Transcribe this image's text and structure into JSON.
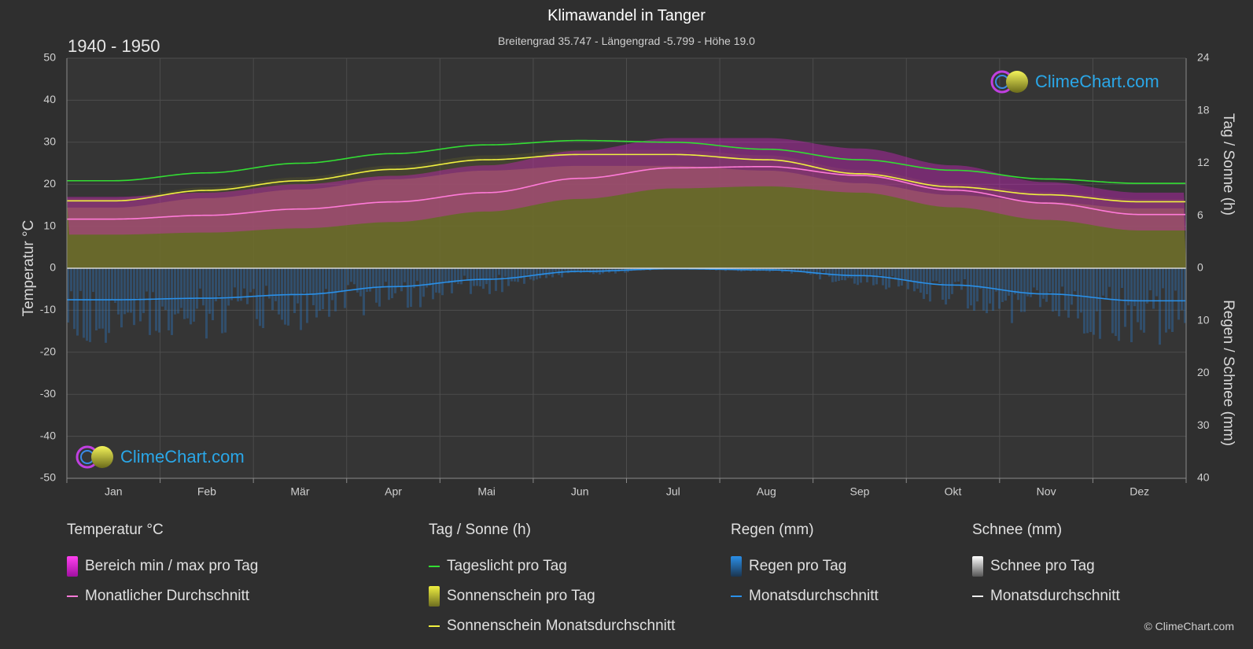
{
  "header": {
    "title": "Klimawandel in Tanger",
    "subtitle": "Breitengrad 35.747 - Längengrad -5.799 - Höhe 19.0",
    "period": "1940 - 1950"
  },
  "axes": {
    "left_title": "Temperatur °C",
    "right_top_title": "Tag / Sonne (h)",
    "right_bottom_title": "Regen / Schnee (mm)"
  },
  "logo": {
    "text": "ClimeChart.com"
  },
  "copyright": "© ClimeChart.com",
  "legend": {
    "temperature": {
      "title": "Temperatur °C",
      "range_label": "Bereich min / max pro Tag",
      "avg_label": "Monatlicher Durchschnitt"
    },
    "sun": {
      "title": "Tag / Sonne (h)",
      "daylight_label": "Tageslicht pro Tag",
      "sunshine_label": "Sonnenschein pro Tag",
      "sunshine_avg_label": "Sonnenschein Monatsdurchschnitt"
    },
    "rain": {
      "title": "Regen (mm)",
      "per_day_label": "Regen pro Tag",
      "avg_label": "Monatsdurchschnitt"
    },
    "snow": {
      "title": "Schnee (mm)",
      "per_day_label": "Schnee pro Tag",
      "avg_label": "Monatsdurchschnitt"
    }
  },
  "colors": {
    "background": "#2f2f2f",
    "temp_range": "#e020d0",
    "temp_avg": "#ff7ad8",
    "daylight": "#33dd33",
    "sunshine_fill": "#8f8f2a",
    "sunshine_avg": "#f0f040",
    "rain": "#2a7fd0",
    "rain_avg": "#2a90e8",
    "snow": "#dddddd",
    "logo_text": "#2aa7e8"
  },
  "chart_data": {
    "type": "area",
    "x_categories": [
      "Jan",
      "Feb",
      "Mär",
      "Apr",
      "Mai",
      "Jun",
      "Jul",
      "Aug",
      "Sep",
      "Okt",
      "Nov",
      "Dez"
    ],
    "left_axis": {
      "label": "Temperatur °C",
      "ticks": [
        50,
        40,
        30,
        20,
        10,
        0,
        -10,
        -20,
        -30,
        -40,
        -50
      ],
      "range": [
        -50,
        50
      ]
    },
    "right_axis_top": {
      "label": "Tag / Sonne (h)",
      "ticks": [
        24,
        18,
        12,
        6,
        0
      ],
      "range": [
        0,
        24
      ]
    },
    "right_axis_bottom": {
      "label": "Regen / Schnee (mm)",
      "ticks": [
        0,
        10,
        20,
        30,
        40
      ],
      "range": [
        0,
        40
      ]
    },
    "grid": true,
    "series": [
      {
        "name": "Tageslicht pro Tag",
        "unit": "h",
        "values": [
          10.0,
          10.9,
          12.0,
          13.1,
          14.1,
          14.6,
          14.4,
          13.6,
          12.4,
          11.2,
          10.2,
          9.7
        ]
      },
      {
        "name": "Sonnenschein Monatsdurchschnitt",
        "unit": "h",
        "values": [
          7.7,
          8.9,
          10.0,
          11.3,
          12.4,
          13.0,
          13.0,
          12.4,
          10.8,
          9.3,
          8.4,
          7.6
        ]
      },
      {
        "name": "Monatlicher Durchschnitt",
        "unit": "°C",
        "values": [
          11.7,
          12.6,
          14.1,
          15.8,
          18.0,
          21.4,
          23.9,
          24.2,
          22.1,
          18.6,
          15.5,
          12.8
        ]
      },
      {
        "name": "Bereich min / max pro Tag (max)",
        "unit": "°C",
        "values": [
          17.0,
          18.0,
          20.0,
          22.0,
          24.5,
          28.0,
          31.0,
          31.0,
          28.5,
          24.5,
          20.5,
          18.0
        ]
      },
      {
        "name": "Bereich min / max pro Tag (min)",
        "unit": "°C",
        "values": [
          8.0,
          8.5,
          9.5,
          11.0,
          13.5,
          16.5,
          19.0,
          19.5,
          18.0,
          14.5,
          11.5,
          9.0
        ]
      },
      {
        "name": "Regen Monatsdurchschnitt",
        "unit": "mm",
        "values": [
          6.0,
          5.7,
          5.0,
          3.5,
          2.1,
          0.6,
          0.1,
          0.3,
          1.4,
          3.2,
          4.9,
          6.2
        ]
      },
      {
        "name": "Schnee Monatsdurchschnitt",
        "unit": "mm",
        "values": [
          0,
          0,
          0,
          0,
          0,
          0,
          0,
          0,
          0,
          0,
          0,
          0
        ]
      }
    ]
  }
}
